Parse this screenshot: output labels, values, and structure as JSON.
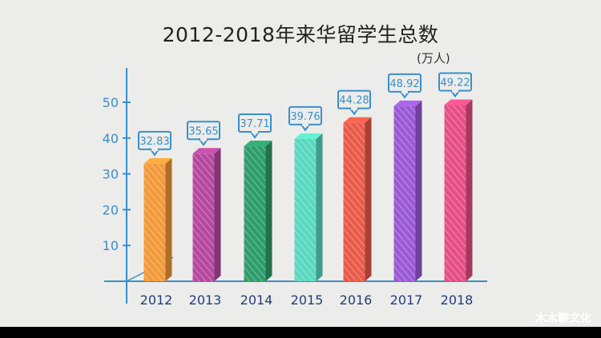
{
  "chart_data": {
    "type": "bar",
    "title": "2012-2018年来华留学生总数",
    "unit": "(万人)",
    "categories": [
      "2012",
      "2013",
      "2014",
      "2015",
      "2016",
      "2017",
      "2018"
    ],
    "values": [
      32.83,
      35.65,
      37.71,
      39.76,
      44.28,
      48.92,
      49.22
    ],
    "value_labels": [
      "32.83",
      "35.65",
      "37.71",
      "39.76",
      "44.28",
      "48.92",
      "49.22"
    ],
    "yticks": [
      10,
      20,
      30,
      40,
      50
    ],
    "ylim": [
      0,
      50
    ],
    "colors": [
      "#f29a3a",
      "#b5499e",
      "#2e9e6a",
      "#59d8bf",
      "#ea5a4a",
      "#9a5ad6",
      "#e64f86"
    ],
    "axis_color": "#3a8fc9",
    "grid": false
  },
  "watermark": "木木聊文化"
}
